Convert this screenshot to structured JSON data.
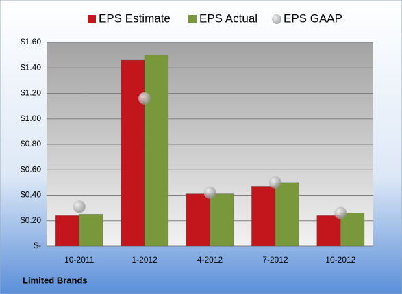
{
  "chart_data": {
    "type": "bar",
    "title": "Limited Brands",
    "categories": [
      "10-2011",
      "1-2012",
      "4-2012",
      "7-2012",
      "10-2012"
    ],
    "series": [
      {
        "name": "EPS Estimate",
        "type": "bar",
        "color": "#c3161c",
        "values": [
          0.24,
          1.46,
          0.41,
          0.47,
          0.24
        ]
      },
      {
        "name": "EPS Actual",
        "type": "bar",
        "color": "#79983c",
        "values": [
          0.25,
          1.5,
          0.41,
          0.5,
          0.26
        ]
      },
      {
        "name": "EPS GAAP",
        "type": "scatter",
        "color": "#a6a6a6",
        "values": [
          0.31,
          1.16,
          0.42,
          0.5,
          0.26
        ]
      }
    ],
    "ylim": [
      0,
      1.6
    ],
    "yticks": [
      {
        "value": 0,
        "label": "$-"
      },
      {
        "value": 0.2,
        "label": "$0.20"
      },
      {
        "value": 0.4,
        "label": "$0.40"
      },
      {
        "value": 0.6,
        "label": "$0.60"
      },
      {
        "value": 0.8,
        "label": "$0.80"
      },
      {
        "value": 1.0,
        "label": "$1.00"
      },
      {
        "value": 1.2,
        "label": "$1.20"
      },
      {
        "value": 1.4,
        "label": "$1.40"
      },
      {
        "value": 1.6,
        "label": "$1.60"
      }
    ],
    "grid": true,
    "legend": "top"
  }
}
